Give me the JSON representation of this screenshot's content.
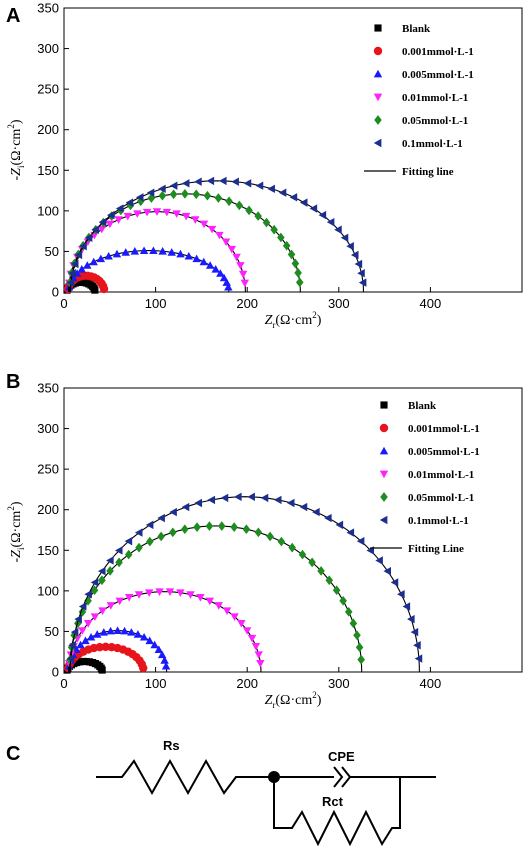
{
  "panels": [
    {
      "label": "A",
      "xlabel": "Zr(Ω·cm2)",
      "ylabel": "-Zi(Ω·cm2)",
      "legend_fit": "Fitting line"
    },
    {
      "label": "B",
      "xlabel": "Zr(Ω·cm2)",
      "ylabel": "-Zi(Ω·cm2)",
      "legend_fit": "Fitting Line"
    }
  ],
  "circuit": {
    "label": "C",
    "rs": "Rs",
    "cpe": "CPE",
    "rct": "Rct"
  },
  "chart_data": [
    {
      "type": "scatter",
      "title": "",
      "panel": "A",
      "xlabel": "Zr(Ω·cm2)",
      "ylabel": "-Zi(Ω·cm2)",
      "xlim": [
        0,
        500
      ],
      "ylim": [
        0,
        350
      ],
      "xticks": [
        0,
        100,
        200,
        300,
        400
      ],
      "yticks": [
        0,
        50,
        100,
        150,
        200,
        250,
        300,
        350
      ],
      "legend_position": "top-right",
      "fit_line_label": "Fitting line",
      "series": [
        {
          "name": "Blank",
          "marker": "square",
          "color": "#000000",
          "R0": 3,
          "R1": 34,
          "peak": 12
        },
        {
          "name": "0.001mmol·L-1",
          "marker": "circle",
          "color": "#e8141b",
          "R0": 4,
          "R1": 44,
          "peak": 20
        },
        {
          "name": "0.005mmol·L-1",
          "marker": "triangle-up",
          "color": "#1a1aff",
          "R0": 5,
          "R1": 180,
          "peak": 51
        },
        {
          "name": "0.01mmol·L-1",
          "marker": "triangle-down",
          "color": "#ff22ff",
          "R0": 5,
          "R1": 198,
          "peak": 99
        },
        {
          "name": "0.05mmol·L-1",
          "marker": "diamond",
          "color": "#1f8c1f",
          "R0": 6,
          "R1": 258,
          "peak": 121
        },
        {
          "name": "0.1mmol·L-1",
          "marker": "triangle-left",
          "color": "#1c2f8f",
          "R0": 7,
          "R1": 327,
          "peak": 137
        }
      ]
    },
    {
      "type": "scatter",
      "title": "",
      "panel": "B",
      "xlabel": "Zr(Ω·cm2)",
      "ylabel": "-Zi(Ω·cm2)",
      "xlim": [
        0,
        500
      ],
      "ylim": [
        0,
        350
      ],
      "xticks": [
        0,
        100,
        200,
        300,
        400
      ],
      "yticks": [
        0,
        50,
        100,
        150,
        200,
        250,
        300,
        350
      ],
      "legend_position": "top-right",
      "fit_line_label": "Fitting Line",
      "series": [
        {
          "name": "Blank",
          "marker": "square",
          "color": "#000000",
          "R0": 3,
          "R1": 42,
          "peak": 13
        },
        {
          "name": "0.001mmol·L-1",
          "marker": "circle",
          "color": "#e8141b",
          "R0": 4,
          "R1": 87,
          "peak": 31
        },
        {
          "name": "0.005mmol·L-1",
          "marker": "triangle-up",
          "color": "#1a1aff",
          "R0": 5,
          "R1": 112,
          "peak": 51
        },
        {
          "name": "0.01mmol·L-1",
          "marker": "triangle-down",
          "color": "#ff22ff",
          "R0": 5,
          "R1": 215,
          "peak": 99
        },
        {
          "name": "0.05mmol·L-1",
          "marker": "diamond",
          "color": "#1f8c1f",
          "R0": 6,
          "R1": 325,
          "peak": 180
        },
        {
          "name": "0.1mmol·L-1",
          "marker": "triangle-left",
          "color": "#1c2f8f",
          "R0": 7,
          "R1": 388,
          "peak": 216
        }
      ]
    }
  ]
}
